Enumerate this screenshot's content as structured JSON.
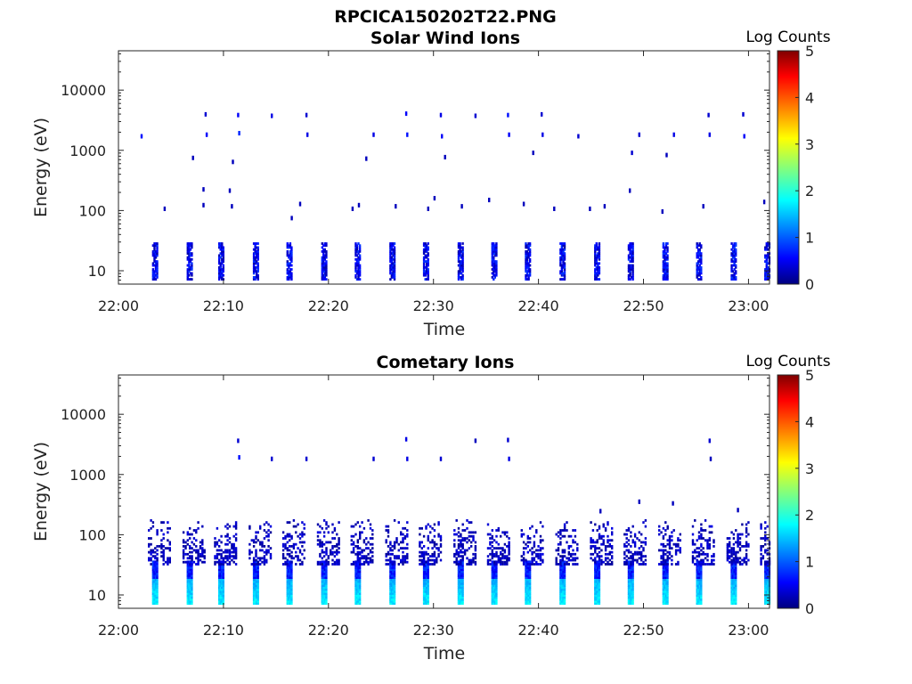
{
  "figure_title": "RPCICA150202T22.PNG",
  "colormap": "jet",
  "chart_data": [
    {
      "type": "heatmap",
      "title": "Solar Wind Ions",
      "xlabel": "Time",
      "ylabel": "Energy (eV)",
      "yscale": "log",
      "xlim": [
        "22:00",
        "23:02"
      ],
      "ylim": [
        6,
        45000
      ],
      "x_ticks": [
        "22:00",
        "22:10",
        "22:20",
        "22:30",
        "22:40",
        "22:50",
        "23:00"
      ],
      "y_ticks": [
        "10",
        "100",
        "1000",
        "10000"
      ],
      "y_tick_values": [
        10,
        100,
        1000,
        10000
      ],
      "colorbar": {
        "label": "Log Counts",
        "range": [
          0,
          5
        ],
        "ticks": [
          "0",
          "1",
          "2",
          "3",
          "4",
          "5"
        ]
      },
      "scan_start_minutes": [
        3.2,
        6.5,
        9.5,
        12.8,
        16.0,
        19.3,
        22.5,
        25.8,
        29.0,
        32.3,
        35.5,
        38.7,
        42.0,
        45.3,
        48.5,
        51.8,
        55.0,
        58.3,
        61.5
      ],
      "band_energy_range_eV": [
        7,
        28
      ],
      "band_log_counts": [
        0.2,
        0.9
      ],
      "sparse_hits": [
        {
          "t": 2.1,
          "e": 1600,
          "v": 0.7
        },
        {
          "t": 8.2,
          "e": 3700,
          "v": 0.4
        },
        {
          "t": 8.3,
          "e": 1700,
          "v": 0.6
        },
        {
          "t": 11.3,
          "e": 3600,
          "v": 0.6
        },
        {
          "t": 11.4,
          "e": 1800,
          "v": 0.8
        },
        {
          "t": 14.5,
          "e": 3500,
          "v": 0.5
        },
        {
          "t": 17.8,
          "e": 3600,
          "v": 0.4
        },
        {
          "t": 17.9,
          "e": 1700,
          "v": 0.5
        },
        {
          "t": 24.2,
          "e": 1700,
          "v": 0.5
        },
        {
          "t": 27.3,
          "e": 3800,
          "v": 0.6
        },
        {
          "t": 27.4,
          "e": 1700,
          "v": 0.7
        },
        {
          "t": 30.6,
          "e": 3600,
          "v": 0.5
        },
        {
          "t": 30.7,
          "e": 1600,
          "v": 0.6
        },
        {
          "t": 33.9,
          "e": 3500,
          "v": 0.4
        },
        {
          "t": 37.0,
          "e": 3600,
          "v": 0.7
        },
        {
          "t": 37.1,
          "e": 1700,
          "v": 0.6
        },
        {
          "t": 40.2,
          "e": 3700,
          "v": 0.4
        },
        {
          "t": 40.3,
          "e": 1700,
          "v": 0.5
        },
        {
          "t": 43.7,
          "e": 1600,
          "v": 0.4
        },
        {
          "t": 49.5,
          "e": 1700,
          "v": 0.4
        },
        {
          "t": 52.8,
          "e": 1700,
          "v": 0.5
        },
        {
          "t": 56.1,
          "e": 3600,
          "v": 0.4
        },
        {
          "t": 56.2,
          "e": 1700,
          "v": 0.5
        },
        {
          "t": 59.4,
          "e": 3700,
          "v": 0.4
        },
        {
          "t": 59.5,
          "e": 1600,
          "v": 0.6
        },
        {
          "t": 7.0,
          "e": 700,
          "v": 0.3
        },
        {
          "t": 10.8,
          "e": 600,
          "v": 0.3
        },
        {
          "t": 23.5,
          "e": 680,
          "v": 0.3
        },
        {
          "t": 31.0,
          "e": 720,
          "v": 0.3
        },
        {
          "t": 39.4,
          "e": 850,
          "v": 0.3
        },
        {
          "t": 48.8,
          "e": 850,
          "v": 0.4
        },
        {
          "t": 52.1,
          "e": 780,
          "v": 0.3
        },
        {
          "t": 8.0,
          "e": 210,
          "v": 0.3
        },
        {
          "t": 10.5,
          "e": 200,
          "v": 0.3
        },
        {
          "t": 4.3,
          "e": 100,
          "v": 0.3
        },
        {
          "t": 8.0,
          "e": 115,
          "v": 0.3
        },
        {
          "t": 10.7,
          "e": 110,
          "v": 0.3
        },
        {
          "t": 16.4,
          "e": 70,
          "v": 0.3
        },
        {
          "t": 17.2,
          "e": 120,
          "v": 0.3
        },
        {
          "t": 22.2,
          "e": 100,
          "v": 0.3
        },
        {
          "t": 22.8,
          "e": 115,
          "v": 0.3
        },
        {
          "t": 26.3,
          "e": 110,
          "v": 0.3
        },
        {
          "t": 29.4,
          "e": 100,
          "v": 0.3
        },
        {
          "t": 30.0,
          "e": 150,
          "v": 0.3
        },
        {
          "t": 32.6,
          "e": 110,
          "v": 0.3
        },
        {
          "t": 35.2,
          "e": 140,
          "v": 0.3
        },
        {
          "t": 38.5,
          "e": 120,
          "v": 0.3
        },
        {
          "t": 41.4,
          "e": 100,
          "v": 0.3
        },
        {
          "t": 44.8,
          "e": 100,
          "v": 0.3
        },
        {
          "t": 46.2,
          "e": 110,
          "v": 0.3
        },
        {
          "t": 48.6,
          "e": 200,
          "v": 0.3
        },
        {
          "t": 51.7,
          "e": 90,
          "v": 0.3
        },
        {
          "t": 55.6,
          "e": 110,
          "v": 0.3
        },
        {
          "t": 61.4,
          "e": 130,
          "v": 0.3
        }
      ]
    },
    {
      "type": "heatmap",
      "title": "Cometary Ions",
      "xlabel": "Time",
      "ylabel": "Energy (eV)",
      "yscale": "log",
      "xlim": [
        "22:00",
        "23:02"
      ],
      "ylim": [
        6,
        45000
      ],
      "x_ticks": [
        "22:00",
        "22:10",
        "22:20",
        "22:30",
        "22:40",
        "22:50",
        "23:00"
      ],
      "y_ticks": [
        "10",
        "100",
        "1000",
        "10000"
      ],
      "y_tick_values": [
        10,
        100,
        1000,
        10000
      ],
      "colorbar": {
        "label": "Log Counts",
        "range": [
          0,
          5
        ],
        "ticks": [
          "0",
          "1",
          "2",
          "3",
          "4",
          "5"
        ]
      },
      "scan_start_minutes": [
        3.2,
        6.5,
        9.5,
        12.8,
        16.0,
        19.3,
        22.5,
        25.8,
        29.0,
        32.3,
        35.5,
        38.7,
        42.0,
        45.3,
        48.5,
        51.8,
        55.0,
        58.3,
        61.5
      ],
      "core_energy_range_eV": [
        7,
        35
      ],
      "core_log_counts": [
        1.3,
        1.9
      ],
      "halo_energy_range_eV": [
        35,
        180
      ],
      "halo_log_counts": [
        0.1,
        0.5
      ],
      "sparse_hits": [
        {
          "t": 11.3,
          "e": 3400,
          "v": 0.4
        },
        {
          "t": 11.4,
          "e": 1800,
          "v": 0.7
        },
        {
          "t": 14.5,
          "e": 1700,
          "v": 0.4
        },
        {
          "t": 17.8,
          "e": 1700,
          "v": 0.4
        },
        {
          "t": 24.2,
          "e": 1700,
          "v": 0.4
        },
        {
          "t": 27.3,
          "e": 3600,
          "v": 0.5
        },
        {
          "t": 27.4,
          "e": 1700,
          "v": 0.5
        },
        {
          "t": 30.6,
          "e": 1700,
          "v": 0.4
        },
        {
          "t": 33.9,
          "e": 3400,
          "v": 0.3
        },
        {
          "t": 37.0,
          "e": 3500,
          "v": 0.4
        },
        {
          "t": 37.1,
          "e": 1700,
          "v": 0.5
        },
        {
          "t": 56.2,
          "e": 3400,
          "v": 0.4
        },
        {
          "t": 56.3,
          "e": 1700,
          "v": 0.3
        },
        {
          "t": 49.5,
          "e": 330,
          "v": 0.3
        },
        {
          "t": 52.7,
          "e": 310,
          "v": 0.3
        },
        {
          "t": 58.9,
          "e": 240,
          "v": 0.3
        },
        {
          "t": 45.8,
          "e": 230,
          "v": 0.3
        }
      ]
    }
  ]
}
